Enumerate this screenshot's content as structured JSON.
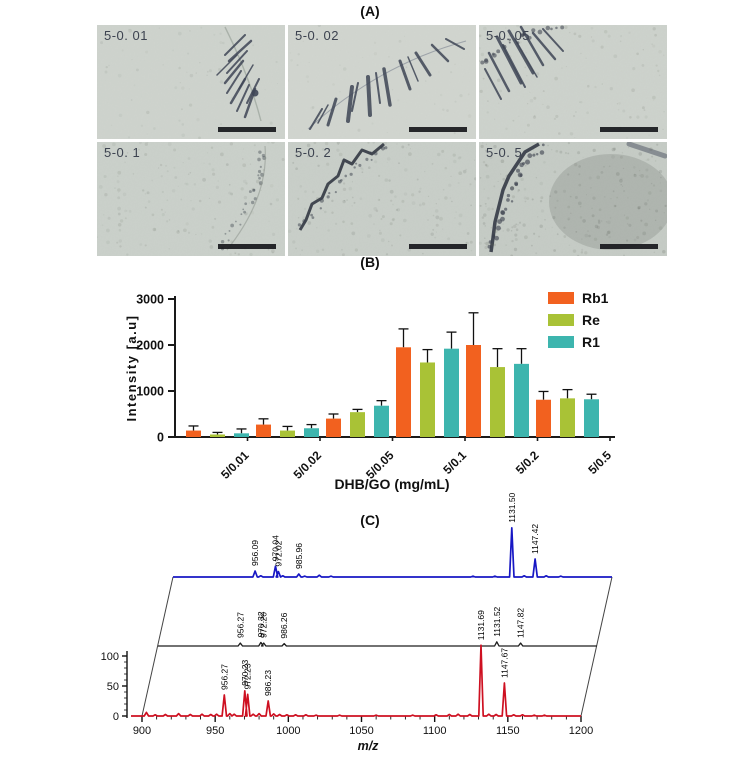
{
  "figure": {
    "panel_a": {
      "label": "(A)",
      "images": [
        {
          "label": "5-0. 01",
          "style": "needle-arc-right",
          "bg": "#cfd4ce"
        },
        {
          "label": "5-0. 02",
          "style": "needle-chain",
          "bg": "#d2d6d0"
        },
        {
          "label": "5-0. 05",
          "style": "needle-cluster-left",
          "bg": "#ced3cd"
        },
        {
          "label": "5-0. 1",
          "style": "granular-light",
          "bg": "#cbd1cb"
        },
        {
          "label": "5-0. 2",
          "style": "granular-edge",
          "bg": "#c9cfc9"
        },
        {
          "label": "5-0. 5",
          "style": "granular-dense",
          "bg": "#c6ccc6"
        }
      ]
    },
    "panel_b": {
      "label": "(B)"
    },
    "panel_c": {
      "label": "(C)"
    }
  },
  "chart_data": [
    {
      "id": "intensity_bar_chart",
      "type": "bar",
      "title": "(B)",
      "categories": [
        "5/0.01",
        "5/0.02",
        "5/0.05",
        "5/0.1",
        "5/0.2",
        "5/0.5"
      ],
      "series": [
        {
          "name": "Rb1",
          "color": "#F2611F",
          "values": [
            140,
            270,
            400,
            1950,
            2000,
            810
          ],
          "errors": [
            100,
            125,
            100,
            400,
            700,
            180
          ]
        },
        {
          "name": "Re",
          "color": "#A9C236",
          "values": [
            55,
            140,
            540,
            1620,
            1520,
            840
          ],
          "errors": [
            45,
            90,
            60,
            280,
            400,
            190
          ]
        },
        {
          "name": "R1",
          "color": "#3DB5AE",
          "values": [
            80,
            190,
            680,
            1920,
            1590,
            820
          ],
          "errors": [
            95,
            80,
            110,
            360,
            330,
            110
          ]
        }
      ],
      "xlabel": "DHB/GO (mg/mL)",
      "ylabel": "Intensity [a.u]",
      "ylim": [
        0,
        3000
      ],
      "yticks": [
        "0",
        "1000",
        "2000",
        "3000"
      ],
      "legend_position": "top-right",
      "grid": false
    },
    {
      "id": "maldi_mass_spectra",
      "type": "line",
      "title": "(C)",
      "xlabel": "m/z",
      "xlim": [
        900,
        1200
      ],
      "xticks": [
        "900",
        "950",
        "1000",
        "1050",
        "1100",
        "1150",
        "1200"
      ],
      "yticks": [
        "0",
        "50",
        "100"
      ],
      "layout": "waterfall-3-traces",
      "traces": [
        {
          "name": "bottom-spectrum",
          "color": "#CE1021",
          "peaks": [
            {
              "mz": 956.27,
              "label": "956.27",
              "h": 35
            },
            {
              "mz": 970.23,
              "label": "970.23",
              "h": 42
            },
            {
              "mz": 972.23,
              "label": "972.23",
              "h": 36
            },
            {
              "mz": 986.23,
              "label": "986.23",
              "h": 25
            },
            {
              "mz": 1131.69,
              "label": "1131.69",
              "h": 118
            },
            {
              "mz": 1147.67,
              "label": "1147.67",
              "h": 55
            }
          ]
        },
        {
          "name": "middle-spectrum",
          "color": "#1d1d1d",
          "peaks": [
            {
              "mz": 956.27,
              "label": "956.27",
              "h": 5
            },
            {
              "mz": 970.32,
              "label": "970.32",
              "h": 6
            },
            {
              "mz": 972.2,
              "label": "972.20",
              "h": 5
            },
            {
              "mz": 986.26,
              "label": "986.26",
              "h": 4
            },
            {
              "mz": 1131.52,
              "label": "1131.52",
              "h": 7
            },
            {
              "mz": 1147.82,
              "label": "1147.82",
              "h": 5
            }
          ]
        },
        {
          "name": "top-spectrum",
          "color": "#1717C4",
          "peaks": [
            {
              "mz": 956.09,
              "label": "956.09",
              "h": 10
            },
            {
              "mz": 970.04,
              "label": "970.04",
              "h": 18
            },
            {
              "mz": 972.02,
              "label": "972.02",
              "h": 9
            },
            {
              "mz": 985.96,
              "label": "985.96",
              "h": 5
            },
            {
              "mz": 1131.5,
              "label": "1131.50",
              "h": 82
            },
            {
              "mz": 1147.42,
              "label": "1147.42",
              "h": 30
            }
          ]
        }
      ]
    }
  ]
}
